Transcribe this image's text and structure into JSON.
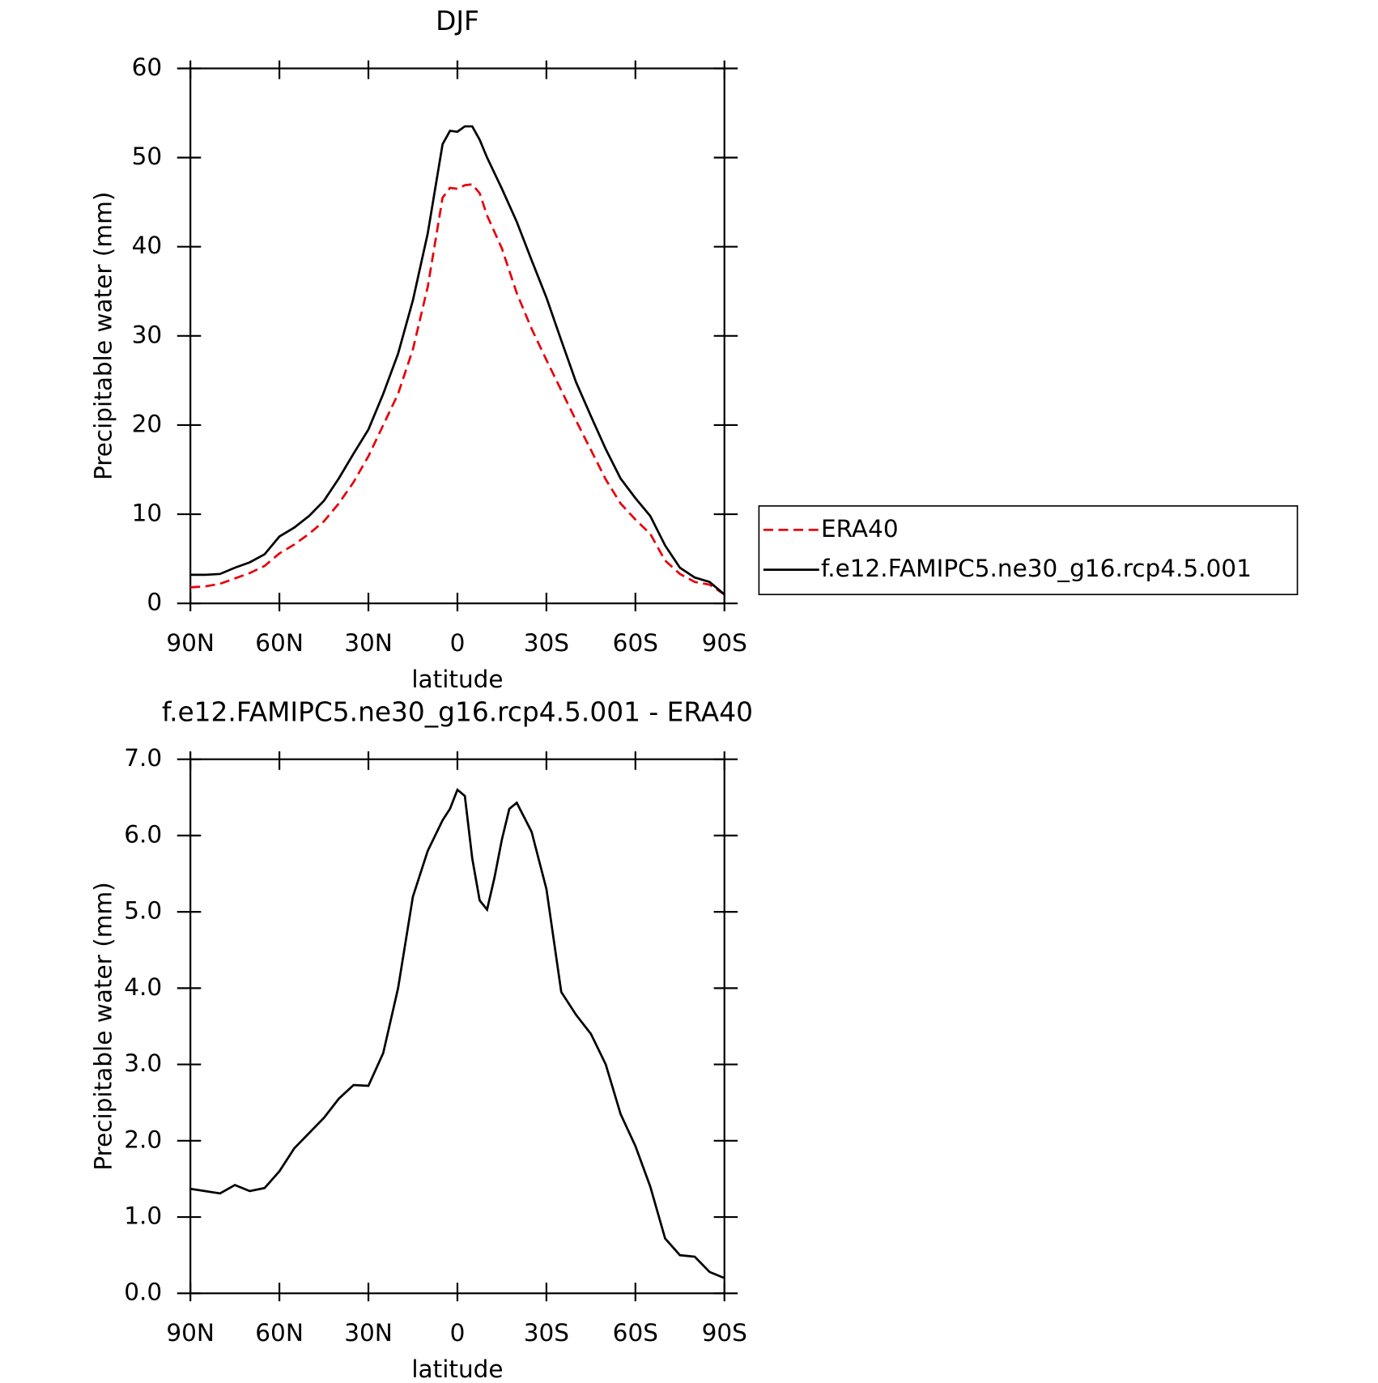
{
  "chart_data": [
    {
      "type": "line",
      "title": "DJF",
      "xlabel": "latitude",
      "ylabel": "Precipitable water (mm)",
      "x": [
        90,
        85,
        80,
        75,
        70,
        65,
        60,
        55,
        50,
        45,
        40,
        35,
        30,
        25,
        20,
        15,
        10,
        5,
        2.5,
        0,
        -2.5,
        -5,
        -7.5,
        -10,
        -15,
        -20,
        -25,
        -30,
        -35,
        -40,
        -45,
        -50,
        -55,
        -60,
        -65,
        -70,
        -75,
        -80,
        -85,
        -90
      ],
      "series": [
        {
          "name": "ERA40",
          "color": "#e8000b",
          "dash": true,
          "values": [
            1.8,
            1.9,
            2.2,
            2.8,
            3.4,
            4.2,
            5.6,
            6.6,
            7.8,
            9.2,
            11.2,
            13.6,
            16.5,
            20,
            23.5,
            28.5,
            35.5,
            45.5,
            46.6,
            46.5,
            46.9,
            47.0,
            46.0,
            43.5,
            39.8,
            34.8,
            30.8,
            27.3,
            23.9,
            20.5,
            17.2,
            13.9,
            11.2,
            9.4,
            7.8,
            4.8,
            3.3,
            2.4,
            2.1,
            1.0
          ]
        },
        {
          "name": "f.e12.FAMIPC5.ne30_g16.rcp4.5.001",
          "color": "#000000",
          "dash": false,
          "values": [
            3.2,
            3.2,
            3.3,
            4.0,
            4.6,
            5.5,
            7.5,
            8.5,
            9.8,
            11.5,
            14,
            16.8,
            19.5,
            23.5,
            28,
            34,
            41.5,
            51.5,
            53,
            52.9,
            53.5,
            53.5,
            52,
            50,
            46.5,
            42.8,
            38.5,
            34.3,
            29.5,
            24.8,
            21,
            17.3,
            14,
            11.8,
            9.8,
            6.5,
            4,
            2.9,
            2.4,
            1.0
          ]
        }
      ],
      "xlim": [
        90,
        -90
      ],
      "xticks": [
        {
          "value": 90,
          "label": "90N"
        },
        {
          "value": 60,
          "label": "60N"
        },
        {
          "value": 30,
          "label": "30N"
        },
        0,
        {
          "value": -30,
          "label": "30S"
        },
        {
          "value": -60,
          "label": "60S"
        },
        {
          "value": -90,
          "label": "90S"
        }
      ],
      "ylim": [
        0,
        60
      ],
      "yticks": [
        0,
        10,
        20,
        30,
        40,
        50,
        60
      ],
      "legend": "right"
    },
    {
      "type": "line",
      "title": "f.e12.FAMIPC5.ne30_g16.rcp4.5.001 - ERA40",
      "xlabel": "latitude",
      "ylabel": "Precipitable water (mm)",
      "x": [
        90,
        85,
        80,
        75,
        70,
        65,
        60,
        55,
        50,
        45,
        40,
        35,
        30,
        25,
        20,
        15,
        10,
        5,
        2.5,
        0,
        -2.5,
        -5,
        -7.5,
        -10,
        -12.5,
        -15,
        -17.5,
        -20,
        -25,
        -30,
        -35,
        -40,
        -45,
        -50,
        -55,
        -60,
        -65,
        -70,
        -75,
        -80,
        -85,
        -90
      ],
      "series": [
        {
          "color": "#000000",
          "dash": false,
          "values": [
            1.37,
            1.34,
            1.31,
            1.42,
            1.34,
            1.38,
            1.6,
            1.9,
            2.1,
            2.3,
            2.55,
            2.73,
            2.72,
            3.15,
            4.0,
            5.2,
            5.8,
            6.2,
            6.35,
            6.6,
            6.52,
            5.7,
            5.15,
            5.03,
            5.45,
            5.95,
            6.35,
            6.43,
            6.05,
            5.3,
            3.95,
            3.65,
            3.4,
            3.0,
            2.35,
            1.93,
            1.4,
            0.72,
            0.5,
            0.48,
            0.28,
            0.2
          ]
        }
      ],
      "xlim": [
        90,
        -90
      ],
      "xticks": [
        {
          "value": 90,
          "label": "90N"
        },
        {
          "value": 60,
          "label": "60N"
        },
        {
          "value": 30,
          "label": "30N"
        },
        0,
        {
          "value": -30,
          "label": "30S"
        },
        {
          "value": -60,
          "label": "60S"
        },
        {
          "value": -90,
          "label": "90S"
        }
      ],
      "ylim": [
        0,
        7
      ],
      "yticks": [
        {
          "value": 0,
          "label": "0.0"
        },
        {
          "value": 1,
          "label": "1.0"
        },
        {
          "value": 2,
          "label": "2.0"
        },
        {
          "value": 3,
          "label": "3.0"
        },
        {
          "value": 4,
          "label": "4.0"
        },
        {
          "value": 5,
          "label": "5.0"
        },
        {
          "value": 6,
          "label": "6.0"
        },
        {
          "value": 7,
          "label": "7.0"
        }
      ]
    }
  ]
}
